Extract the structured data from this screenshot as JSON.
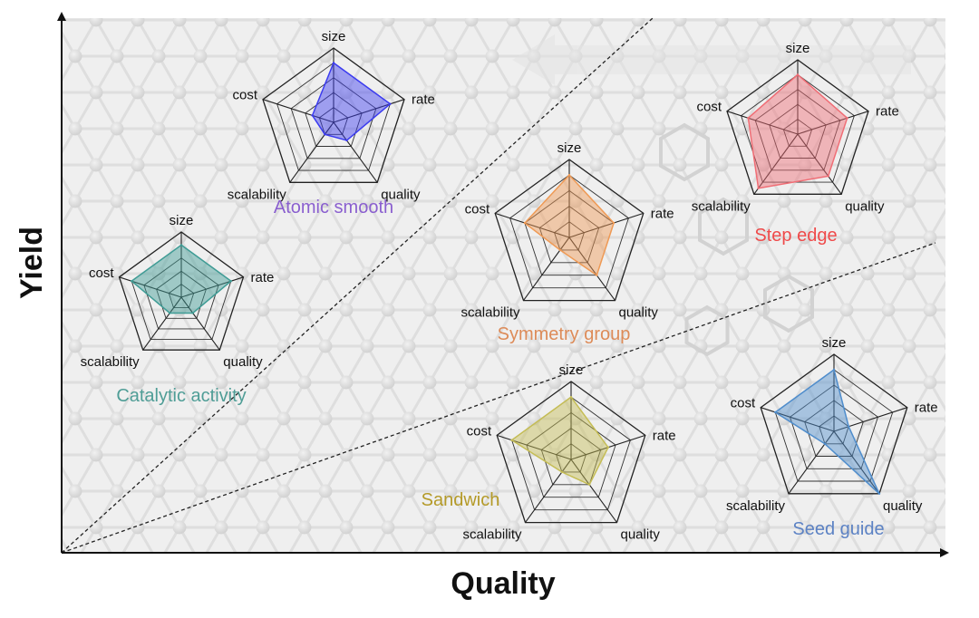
{
  "chart_data": {
    "type": "radar",
    "xlabel": "Quality",
    "ylabel": "Yield",
    "axes": [
      "size",
      "rate",
      "quality",
      "scalability",
      "cost"
    ],
    "range": [
      0,
      5
    ],
    "levels": 5,
    "series": [
      {
        "name": "Atomic smooth",
        "values": [
          4.0,
          4.0,
          1.5,
          1.0,
          1.5
        ],
        "color": "#3b3bf0",
        "label_color": "#8a5fcf"
      },
      {
        "name": "Catalytic activity",
        "values": [
          4.0,
          4.0,
          1.5,
          1.5,
          4.0
        ],
        "color": "#3f9c95",
        "label_color": "#4f9d96"
      },
      {
        "name": "Symmetry group",
        "values": [
          4.0,
          3.0,
          3.0,
          1.0,
          3.0
        ],
        "color": "#ef9a55",
        "label_color": "#dd8b58"
      },
      {
        "name": "Step edge",
        "values": [
          4.0,
          3.5,
          3.5,
          4.5,
          3.5
        ],
        "color": "#f06d75",
        "label_color": "#ef4a4a"
      },
      {
        "name": "Sandwich",
        "values": [
          4.0,
          2.5,
          2.0,
          1.0,
          4.0
        ],
        "color": "#c5bd55",
        "label_color": "#b49a28"
      },
      {
        "name": "Seed guide",
        "values": [
          4.0,
          1.0,
          5.0,
          1.0,
          4.0
        ],
        "color": "#4f8dcc",
        "label_color": "#5c82c4"
      }
    ]
  }
}
